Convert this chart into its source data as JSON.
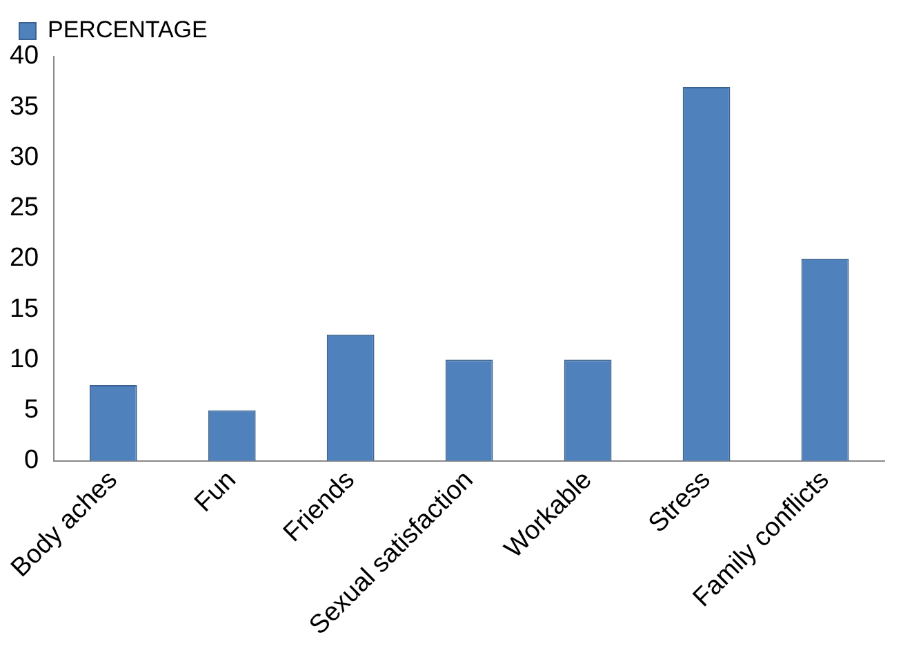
{
  "chart_data": {
    "type": "bar",
    "categories": [
      "Body aches",
      "Fun",
      "Friends",
      "Sexual satisfaction",
      "Workable",
      "Stress",
      "Family conflicts"
    ],
    "series": [
      {
        "name": "PERCENTAGE",
        "color": "#4f81bd",
        "values": [
          7.5,
          5,
          12.5,
          10,
          10,
          37,
          20
        ]
      }
    ],
    "ylim": [
      0,
      40
    ],
    "yticks": [
      0,
      5,
      10,
      15,
      20,
      25,
      30,
      35,
      40
    ],
    "grid": false,
    "legend": "top left"
  }
}
